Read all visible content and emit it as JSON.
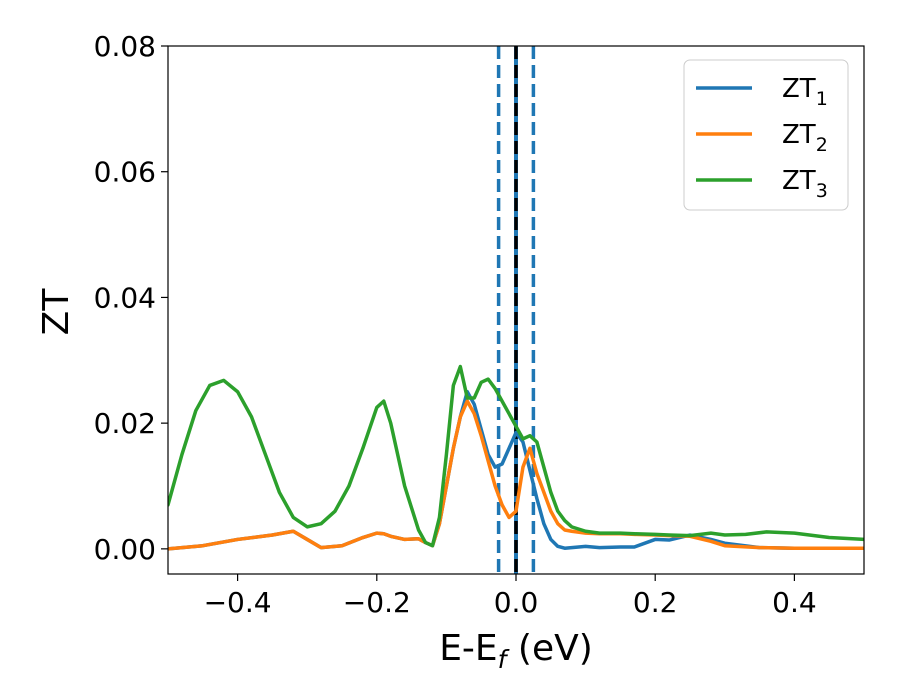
{
  "chart_data": {
    "type": "line",
    "xlabel": "E-E",
    "xlabel_sub": "f",
    "xlabel_unit": " (eV)",
    "ylabel": "ZT",
    "xlim": [
      -0.5,
      0.5
    ],
    "ylim": [
      -0.004,
      0.08
    ],
    "xticks": [
      -0.4,
      -0.2,
      0.0,
      0.2,
      0.4
    ],
    "xtick_labels": [
      "−0.4",
      "−0.2",
      "0.0",
      "0.2",
      "0.4"
    ],
    "yticks": [
      0.0,
      0.02,
      0.04,
      0.06,
      0.08
    ],
    "ytick_labels": [
      "0.00",
      "0.02",
      "0.04",
      "0.06",
      "0.08"
    ],
    "grid": false,
    "legend_position": "top-right",
    "vlines": [
      {
        "x": -0.025,
        "style": "dashed",
        "color": "#1f77b4"
      },
      {
        "x": 0.025,
        "style": "dashed",
        "color": "#1f77b4"
      },
      {
        "x": 0.0,
        "style": "solid",
        "color": "#1f77b4"
      },
      {
        "x": 0.0,
        "style": "dashed",
        "color": "#000000"
      }
    ],
    "series": [
      {
        "name": "ZT",
        "name_sub": "1",
        "color": "#1f77b4",
        "x": [
          -0.5,
          -0.45,
          -0.4,
          -0.35,
          -0.32,
          -0.3,
          -0.28,
          -0.25,
          -0.22,
          -0.2,
          -0.19,
          -0.18,
          -0.16,
          -0.14,
          -0.13,
          -0.12,
          -0.11,
          -0.1,
          -0.09,
          -0.08,
          -0.07,
          -0.06,
          -0.05,
          -0.04,
          -0.03,
          -0.02,
          -0.01,
          0.0,
          0.01,
          0.02,
          0.03,
          0.04,
          0.05,
          0.06,
          0.07,
          0.08,
          0.1,
          0.12,
          0.15,
          0.17,
          0.2,
          0.22,
          0.25,
          0.28,
          0.3,
          0.35,
          0.4,
          0.45,
          0.5
        ],
        "y": [
          0.0,
          0.0005,
          0.0015,
          0.0022,
          0.0028,
          0.0015,
          0.0002,
          0.0005,
          0.0018,
          0.0025,
          0.0024,
          0.002,
          0.0015,
          0.0016,
          0.001,
          0.0005,
          0.004,
          0.01,
          0.016,
          0.021,
          0.025,
          0.023,
          0.019,
          0.015,
          0.013,
          0.0135,
          0.016,
          0.0185,
          0.017,
          0.0125,
          0.008,
          0.004,
          0.0015,
          0.0004,
          0.0001,
          0.0002,
          0.0004,
          0.0002,
          0.0003,
          0.0003,
          0.0015,
          0.0014,
          0.0022,
          0.0015,
          0.0009,
          0.0002,
          0.0001,
          0.0001,
          0.0001
        ]
      },
      {
        "name": "ZT",
        "name_sub": "2",
        "color": "#ff7f0e",
        "x": [
          -0.5,
          -0.45,
          -0.4,
          -0.35,
          -0.32,
          -0.3,
          -0.28,
          -0.25,
          -0.22,
          -0.2,
          -0.19,
          -0.18,
          -0.16,
          -0.14,
          -0.13,
          -0.12,
          -0.11,
          -0.1,
          -0.09,
          -0.08,
          -0.07,
          -0.06,
          -0.05,
          -0.04,
          -0.03,
          -0.02,
          -0.01,
          0.0,
          0.01,
          0.02,
          0.03,
          0.04,
          0.05,
          0.06,
          0.07,
          0.08,
          0.1,
          0.12,
          0.15,
          0.17,
          0.2,
          0.22,
          0.25,
          0.28,
          0.3,
          0.35,
          0.4,
          0.45,
          0.5
        ],
        "y": [
          0.0,
          0.0005,
          0.0015,
          0.0022,
          0.0028,
          0.0015,
          0.0002,
          0.0005,
          0.0018,
          0.0025,
          0.0024,
          0.002,
          0.0015,
          0.0016,
          0.001,
          0.0005,
          0.004,
          0.01,
          0.016,
          0.021,
          0.0235,
          0.0215,
          0.018,
          0.014,
          0.01,
          0.007,
          0.005,
          0.006,
          0.013,
          0.016,
          0.012,
          0.009,
          0.006,
          0.004,
          0.003,
          0.0028,
          0.0025,
          0.0024,
          0.0024,
          0.0023,
          0.0022,
          0.0021,
          0.002,
          0.0012,
          0.0005,
          0.0002,
          0.0001,
          0.0001,
          0.0001
        ]
      },
      {
        "name": "ZT",
        "name_sub": "3",
        "color": "#2ca02c",
        "x": [
          -0.5,
          -0.48,
          -0.46,
          -0.44,
          -0.42,
          -0.4,
          -0.38,
          -0.36,
          -0.34,
          -0.32,
          -0.3,
          -0.28,
          -0.26,
          -0.24,
          -0.22,
          -0.2,
          -0.19,
          -0.18,
          -0.16,
          -0.14,
          -0.13,
          -0.12,
          -0.11,
          -0.1,
          -0.09,
          -0.08,
          -0.07,
          -0.06,
          -0.05,
          -0.04,
          -0.03,
          -0.02,
          -0.01,
          0.0,
          0.01,
          0.02,
          0.03,
          0.04,
          0.05,
          0.06,
          0.07,
          0.08,
          0.1,
          0.12,
          0.15,
          0.17,
          0.2,
          0.22,
          0.25,
          0.28,
          0.3,
          0.33,
          0.36,
          0.4,
          0.45,
          0.5
        ],
        "y": [
          0.007,
          0.015,
          0.022,
          0.026,
          0.0268,
          0.025,
          0.021,
          0.015,
          0.009,
          0.005,
          0.0035,
          0.004,
          0.006,
          0.01,
          0.016,
          0.0225,
          0.0235,
          0.02,
          0.01,
          0.003,
          0.001,
          0.0005,
          0.005,
          0.015,
          0.026,
          0.029,
          0.024,
          0.024,
          0.0265,
          0.027,
          0.0255,
          0.0235,
          0.0215,
          0.0195,
          0.0175,
          0.018,
          0.017,
          0.013,
          0.009,
          0.006,
          0.0045,
          0.0035,
          0.0028,
          0.0025,
          0.0025,
          0.0024,
          0.0023,
          0.0022,
          0.0021,
          0.0025,
          0.0022,
          0.0023,
          0.0027,
          0.0025,
          0.0018,
          0.0015
        ]
      }
    ]
  }
}
